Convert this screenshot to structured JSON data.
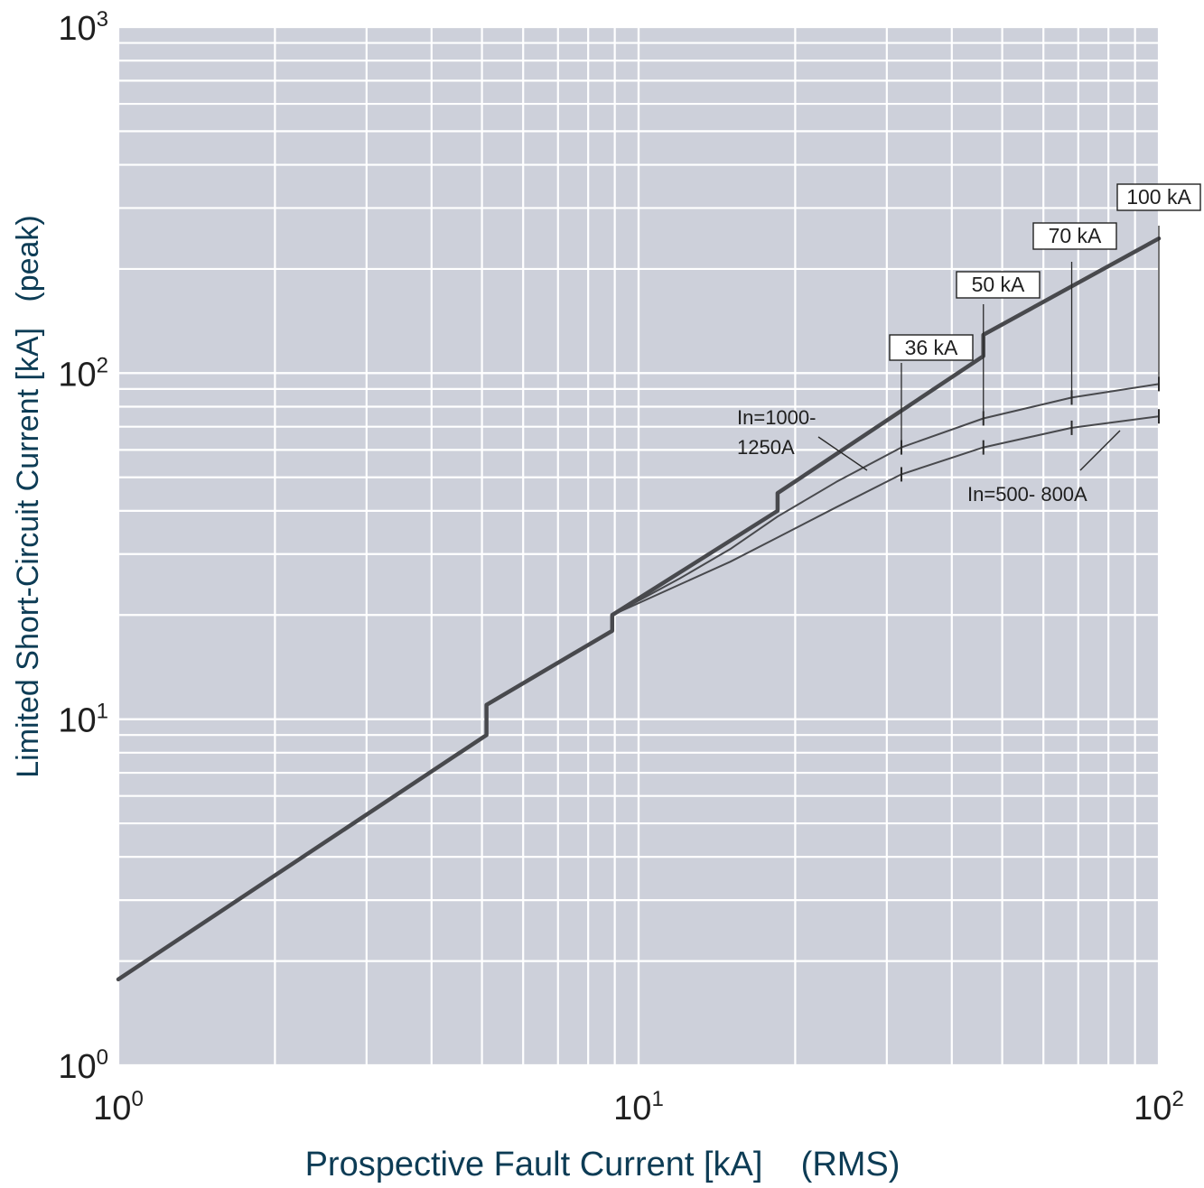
{
  "chart_data": {
    "type": "line",
    "xscale": "log",
    "yscale": "log",
    "xlim": [
      1,
      100
    ],
    "ylim": [
      1,
      1000
    ],
    "grid": true,
    "xlabel": "Prospective Fault Current [kA]    (RMS)",
    "ylabel": "Limited Short-Circuit Current [kA]   (peak)",
    "x_ticks": [
      {
        "base": "10",
        "exp": "0"
      },
      {
        "base": "10",
        "exp": "1"
      },
      {
        "base": "10",
        "exp": "2"
      }
    ],
    "y_ticks": [
      {
        "base": "10",
        "exp": "0"
      },
      {
        "base": "10",
        "exp": "1"
      },
      {
        "base": "10",
        "exp": "2"
      },
      {
        "base": "10",
        "exp": "3"
      }
    ],
    "series": [
      {
        "role": "envelope",
        "x": [
          1,
          5.1,
          5.1,
          8.9,
          8.9,
          18.5,
          18.5,
          46,
          46,
          100
        ],
        "y": [
          1.77,
          9.0,
          11.0,
          18.0,
          20.0,
          40.0,
          45.0,
          112,
          129,
          245
        ]
      },
      {
        "role": "In=1000-1250A",
        "x": [
          8.9,
          12,
          15,
          18.5,
          24,
          32,
          46,
          68,
          100
        ],
        "y": [
          20.0,
          25.5,
          31.0,
          38.5,
          48.5,
          61.0,
          74.0,
          85.0,
          93.0
        ]
      },
      {
        "role": "In=500-800A",
        "x": [
          8.9,
          12,
          15,
          18.5,
          24,
          32,
          46,
          68,
          100
        ],
        "y": [
          20.0,
          24.5,
          28.5,
          33.5,
          41.0,
          51.0,
          61.0,
          69.5,
          75.0
        ]
      }
    ],
    "rating_markers": [
      {
        "label": "36 kA",
        "x": 32
      },
      {
        "label": "50 kA",
        "x": 46
      },
      {
        "label": "70 kA",
        "x": 68
      },
      {
        "label": "100 kA",
        "x": 100
      }
    ],
    "annotations": [
      {
        "lines": [
          "In=1000-",
          "1250A"
        ]
      },
      {
        "lines": [
          "In=500- 800A"
        ]
      }
    ],
    "colors": {
      "plot_background": "#cdd0da",
      "grid": "#ffffff",
      "curve": "#48494d",
      "axis_title": "#0d3c55"
    }
  }
}
